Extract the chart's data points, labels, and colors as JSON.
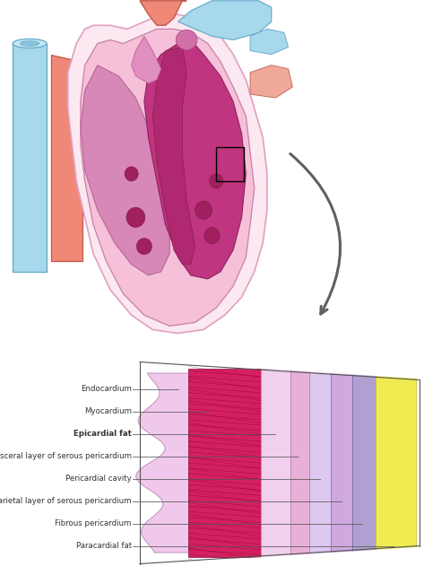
{
  "bg_color": "#ffffff",
  "arrow_color": "#606060",
  "layer_labels": [
    "Endocardium",
    "Myocardium",
    "Epicardial fat",
    "Visceral layer of serous pericardium",
    "Pericardial cavity",
    "Parietal layer of serous pericardium",
    "Fibrous pericardium",
    "Paracardial fat"
  ],
  "layer_bold": [
    false,
    false,
    true,
    false,
    false,
    false,
    false,
    false
  ],
  "label_fontsize": 6.2,
  "endo_color": "#f5c8e8",
  "myo_color": "#d42060",
  "myo_stripe_color": "#8a0030",
  "epifat_color": "#f0d0ec",
  "visc_color": "#e8b0d8",
  "pericav_color": "#ddc8f0",
  "pariet_color": "#d0a8e0",
  "fibrous_color": "#b0a0d0",
  "parafat_color": "#f0eb50",
  "heart_peri_outer": "#fce8f0",
  "heart_peri_edge": "#e0a0c0",
  "heart_inner": "#f5c0d8",
  "heart_inner_edge": "#c880a8",
  "heart_muscle": "#c03580",
  "heart_muscle_edge": "#902060",
  "aorta_fill": "#f08878",
  "aorta_edge": "#c05848",
  "vena_fill": "#a8d8ec",
  "vena_edge": "#6aaccc",
  "pulm_fill": "#f0a898",
  "pulm_fill2": "#a8d8ec"
}
